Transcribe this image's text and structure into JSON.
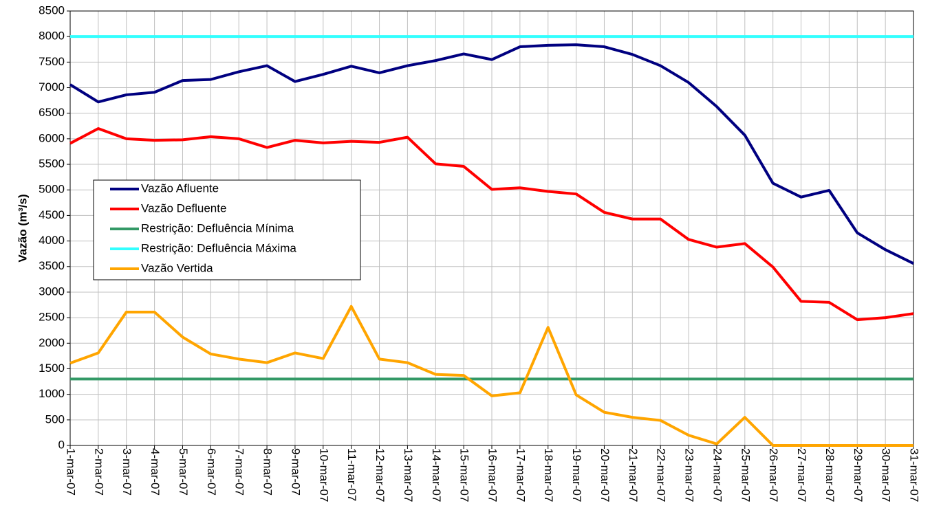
{
  "chart_data": {
    "type": "line",
    "y_label": "Vazão (m³/s)",
    "categories": [
      "1-mar-07",
      "2-mar-07",
      "3-mar-07",
      "4-mar-07",
      "5-mar-07",
      "6-mar-07",
      "7-mar-07",
      "8-mar-07",
      "9-mar-07",
      "10-mar-07",
      "11-mar-07",
      "12-mar-07",
      "13-mar-07",
      "14-mar-07",
      "15-mar-07",
      "16-mar-07",
      "17-mar-07",
      "18-mar-07",
      "19-mar-07",
      "20-mar-07",
      "21-mar-07",
      "22-mar-07",
      "23-mar-07",
      "24-mar-07",
      "25-mar-07",
      "26-mar-07",
      "27-mar-07",
      "28-mar-07",
      "29-mar-07",
      "30-mar-07",
      "31-mar-07"
    ],
    "series": [
      {
        "name": "Vazão Afluente",
        "color": "#000080",
        "values": [
          7060,
          6720,
          6860,
          6910,
          7140,
          7160,
          7310,
          7430,
          7120,
          7260,
          7420,
          7290,
          7430,
          7530,
          7660,
          7550,
          7800,
          7830,
          7840,
          7800,
          7650,
          7430,
          7100,
          6630,
          6070,
          5130,
          4860,
          4990,
          4160,
          3830,
          3560
        ]
      },
      {
        "name": "Vazão Defluente",
        "color": "#ff0000",
        "values": [
          5910,
          6200,
          6000,
          5970,
          5980,
          6040,
          6000,
          5830,
          5970,
          5920,
          5950,
          5930,
          6030,
          5510,
          5460,
          5010,
          5040,
          4970,
          4920,
          4560,
          4430,
          4430,
          4030,
          3880,
          3950,
          3490,
          2820,
          2800,
          2460,
          2500,
          2580
        ]
      },
      {
        "name": "Restrição: Defluência Mínima",
        "color": "#339966",
        "values": [
          1300,
          1300,
          1300,
          1300,
          1300,
          1300,
          1300,
          1300,
          1300,
          1300,
          1300,
          1300,
          1300,
          1300,
          1300,
          1300,
          1300,
          1300,
          1300,
          1300,
          1300,
          1300,
          1300,
          1300,
          1300,
          1300,
          1300,
          1300,
          1300,
          1300,
          1300
        ]
      },
      {
        "name": "Restrição: Defluência Máxima",
        "color": "#33ffff",
        "values": [
          8000,
          8000,
          8000,
          8000,
          8000,
          8000,
          8000,
          8000,
          8000,
          8000,
          8000,
          8000,
          8000,
          8000,
          8000,
          8000,
          8000,
          8000,
          8000,
          8000,
          8000,
          8000,
          8000,
          8000,
          8000,
          8000,
          8000,
          8000,
          8000,
          8000,
          8000
        ]
      },
      {
        "name": "Vazão Vertida",
        "color": "#ffa500",
        "values": [
          1610,
          1810,
          2610,
          2610,
          2120,
          1790,
          1690,
          1620,
          1810,
          1700,
          2720,
          1690,
          1620,
          1390,
          1370,
          970,
          1030,
          2310,
          990,
          650,
          550,
          490,
          200,
          30,
          550,
          0,
          0,
          0,
          0,
          0,
          0
        ]
      }
    ],
    "ylim": [
      0,
      8500
    ],
    "yticks": [
      0,
      500,
      1000,
      1500,
      2000,
      2500,
      3000,
      3500,
      4000,
      4500,
      5000,
      5500,
      6000,
      6500,
      7000,
      7500,
      8000,
      8500
    ],
    "grid": true,
    "legend_position": "left"
  }
}
